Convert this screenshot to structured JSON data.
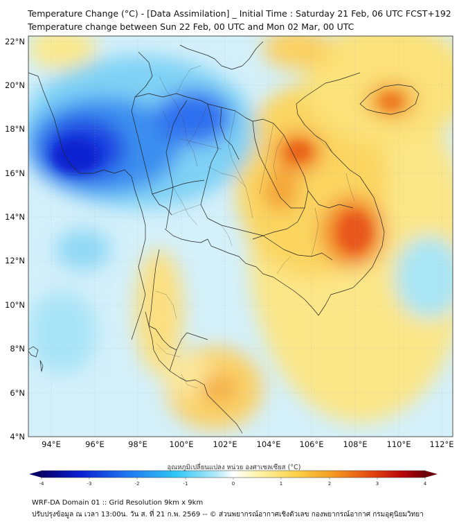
{
  "header": {
    "title_line1": "Temperature Change (°C) - [Data Assimilation] _ Initial Time : Saturday 21 Feb, 06 UTC FCST+192",
    "title_line2": "Temperature change between Sun 22 Feb, 00 UTC and Mon 02 Mar, 00 UTC"
  },
  "map": {
    "latitude_labels": [
      "22°N",
      "20°N",
      "18°N",
      "16°N",
      "14°N",
      "12°N",
      "10°N",
      "8°N",
      "6°N",
      "4°N"
    ],
    "longitude_labels": [
      "94°E",
      "96°E",
      "98°E",
      "100°E",
      "102°E",
      "104°E",
      "106°E",
      "108°E",
      "110°E",
      "112°E"
    ],
    "lat_range": [
      4,
      22.2
    ],
    "lon_range": [
      93,
      112.6
    ]
  },
  "colorbar": {
    "label": "อุณหภูมิเปลี่ยนแปลง หน่วย องศาเซลเซียส (°C)",
    "tick_labels": [
      "-4",
      "-3",
      "-2",
      "-1",
      "0",
      "1",
      "2",
      "3",
      "4"
    ],
    "range": [
      -4,
      4
    ]
  },
  "footer": {
    "line1": "WRF-DA Domain 01 :: Grid Resolution 9km x 9km",
    "line2": "ปรับปรุงข้อมูล ณ เวลา 13:00น. วัน ส. ที่ 21 ก.พ. 2569 -- © ส่วนพยากรณ์อากาศเชิงตัวเลข กองพยากรณ์อากาศ กรมอุตุนิยมวิทยา"
  },
  "icons": [
    "map-plot",
    "colorbar-left-arrow",
    "colorbar-right-arrow"
  ]
}
